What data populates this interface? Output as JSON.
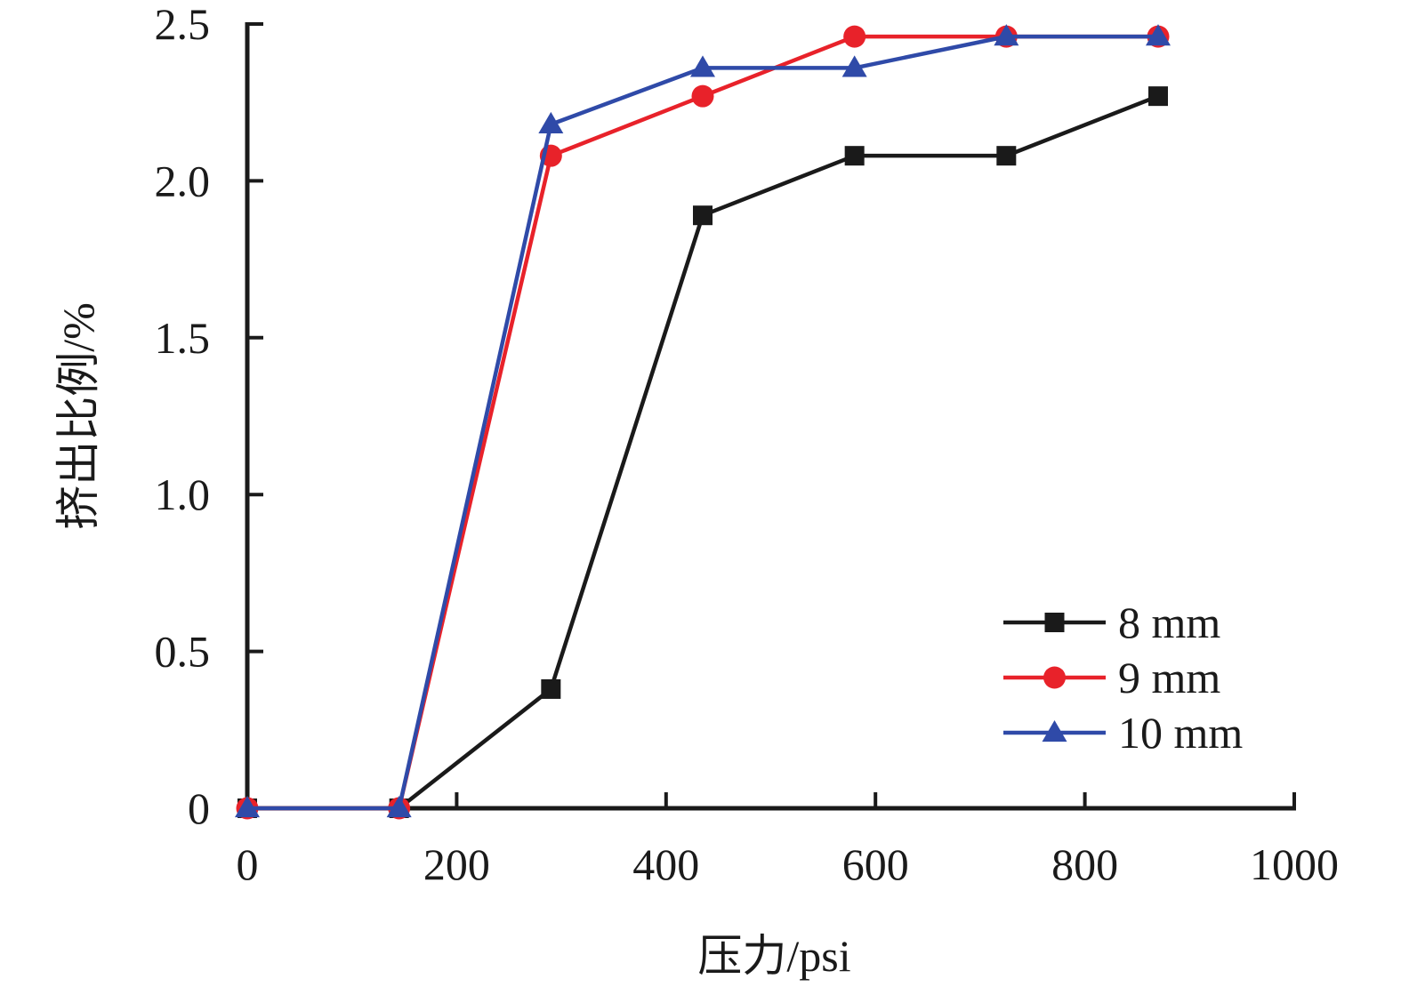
{
  "chart_data": {
    "type": "line",
    "xlabel": "压力/psi",
    "ylabel": "挤出比例/%",
    "xlim": [
      0,
      1000
    ],
    "ylim": [
      0,
      2.5
    ],
    "x_ticks": [
      0,
      200,
      400,
      600,
      800,
      1000
    ],
    "y_ticks": [
      0,
      0.5,
      1.0,
      1.5,
      2.0,
      2.5
    ],
    "x_tick_labels": [
      "0",
      "200",
      "400",
      "600",
      "800",
      "1000"
    ],
    "y_tick_labels": [
      "0",
      "0.5",
      "1.0",
      "1.5",
      "2.0",
      "2.5"
    ],
    "grid": false,
    "legend_position": "bottom-right",
    "x": [
      0,
      145,
      290,
      435,
      580,
      725,
      870
    ],
    "series": [
      {
        "name": "8 mm",
        "values": [
          0,
          0,
          0.38,
          1.89,
          2.08,
          2.08,
          2.27
        ],
        "color": "#1a1a1a",
        "marker": "square"
      },
      {
        "name": "9 mm",
        "values": [
          0,
          0,
          2.08,
          2.27,
          2.46,
          2.46,
          2.46
        ],
        "color": "#e8222a",
        "marker": "circle"
      },
      {
        "name": "10 mm",
        "values": [
          0,
          0,
          2.18,
          2.36,
          2.36,
          2.46,
          2.46
        ],
        "color": "#2f4aa8",
        "marker": "triangle"
      }
    ]
  }
}
